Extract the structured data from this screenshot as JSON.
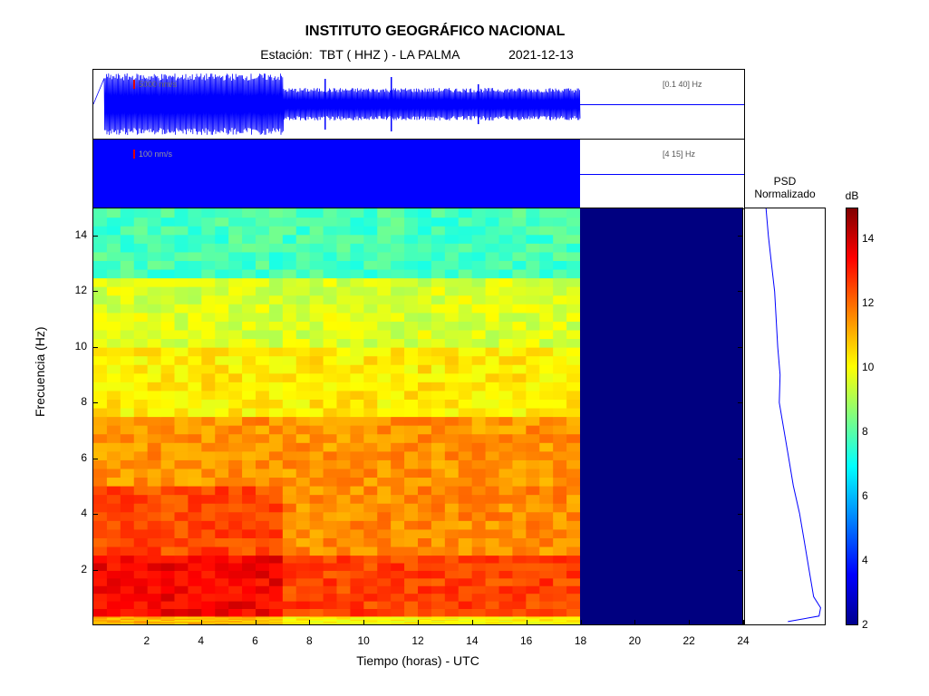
{
  "header": {
    "title": "INSTITUTO GEOGRÁFICO NACIONAL",
    "station_prefix": "Estación:",
    "station": "TBT ( HHZ ) - LA PALMA",
    "date": "2021-12-13"
  },
  "traces": [
    {
      "scale_label": "5000 nm/s",
      "band_label": "[0.1 40]  Hz"
    },
    {
      "scale_label": "100 nm/s",
      "band_label": "[4 15]  Hz"
    }
  ],
  "psd": {
    "title_line1": "PSD",
    "title_line2": "Normalizado"
  },
  "colorbar": {
    "unit": "dB",
    "ticks": [
      "2",
      "4",
      "6",
      "8",
      "10",
      "12",
      "14"
    ],
    "range": [
      2,
      15
    ]
  },
  "colors": {
    "trace": "#0000ff",
    "nodata": "#000080",
    "scale_marker": "#e00000"
  },
  "chart_data": {
    "type": "heatmap",
    "xlabel": "Tiempo (horas) - UTC",
    "ylabel": "Frecuencia  (Hz)",
    "xlim": [
      0,
      24
    ],
    "ylim": [
      0,
      15
    ],
    "xticks": [
      "2",
      "4",
      "6",
      "8",
      "10",
      "12",
      "14",
      "16",
      "18",
      "20",
      "22",
      "24"
    ],
    "yticks": [
      "2",
      "4",
      "6",
      "8",
      "10",
      "12",
      "14"
    ],
    "data_end_hour": 18,
    "amplitude_drop_hour": 7,
    "psd_profile": [
      {
        "f": 0.1,
        "v": 0.55
      },
      {
        "f": 0.3,
        "v": 0.95
      },
      {
        "f": 0.6,
        "v": 0.97
      },
      {
        "f": 1.0,
        "v": 0.88
      },
      {
        "f": 1.5,
        "v": 0.85
      },
      {
        "f": 2.0,
        "v": 0.82
      },
      {
        "f": 3.0,
        "v": 0.76
      },
      {
        "f": 4.0,
        "v": 0.7
      },
      {
        "f": 5.0,
        "v": 0.62
      },
      {
        "f": 6.0,
        "v": 0.56
      },
      {
        "f": 7.0,
        "v": 0.5
      },
      {
        "f": 8.0,
        "v": 0.44
      },
      {
        "f": 9.0,
        "v": 0.45
      },
      {
        "f": 10.0,
        "v": 0.42
      },
      {
        "f": 11.0,
        "v": 0.4
      },
      {
        "f": 12.0,
        "v": 0.38
      },
      {
        "f": 13.0,
        "v": 0.34
      },
      {
        "f": 14.0,
        "v": 0.3
      },
      {
        "f": 15.0,
        "v": 0.27
      }
    ],
    "spectrogram_bands": [
      {
        "f0": 0.0,
        "f1": 0.3,
        "db": 11.0
      },
      {
        "f0": 0.3,
        "f1": 2.5,
        "db": 13.5
      },
      {
        "f0": 2.5,
        "f1": 5.0,
        "db": 12.5
      },
      {
        "f0": 5.0,
        "f1": 7.5,
        "db": 11.5
      },
      {
        "f0": 7.5,
        "f1": 10.0,
        "db": 10.3
      },
      {
        "f0": 10.0,
        "f1": 12.5,
        "db": 9.6
      },
      {
        "f0": 12.5,
        "f1": 15.0,
        "db": 7.8
      }
    ]
  }
}
